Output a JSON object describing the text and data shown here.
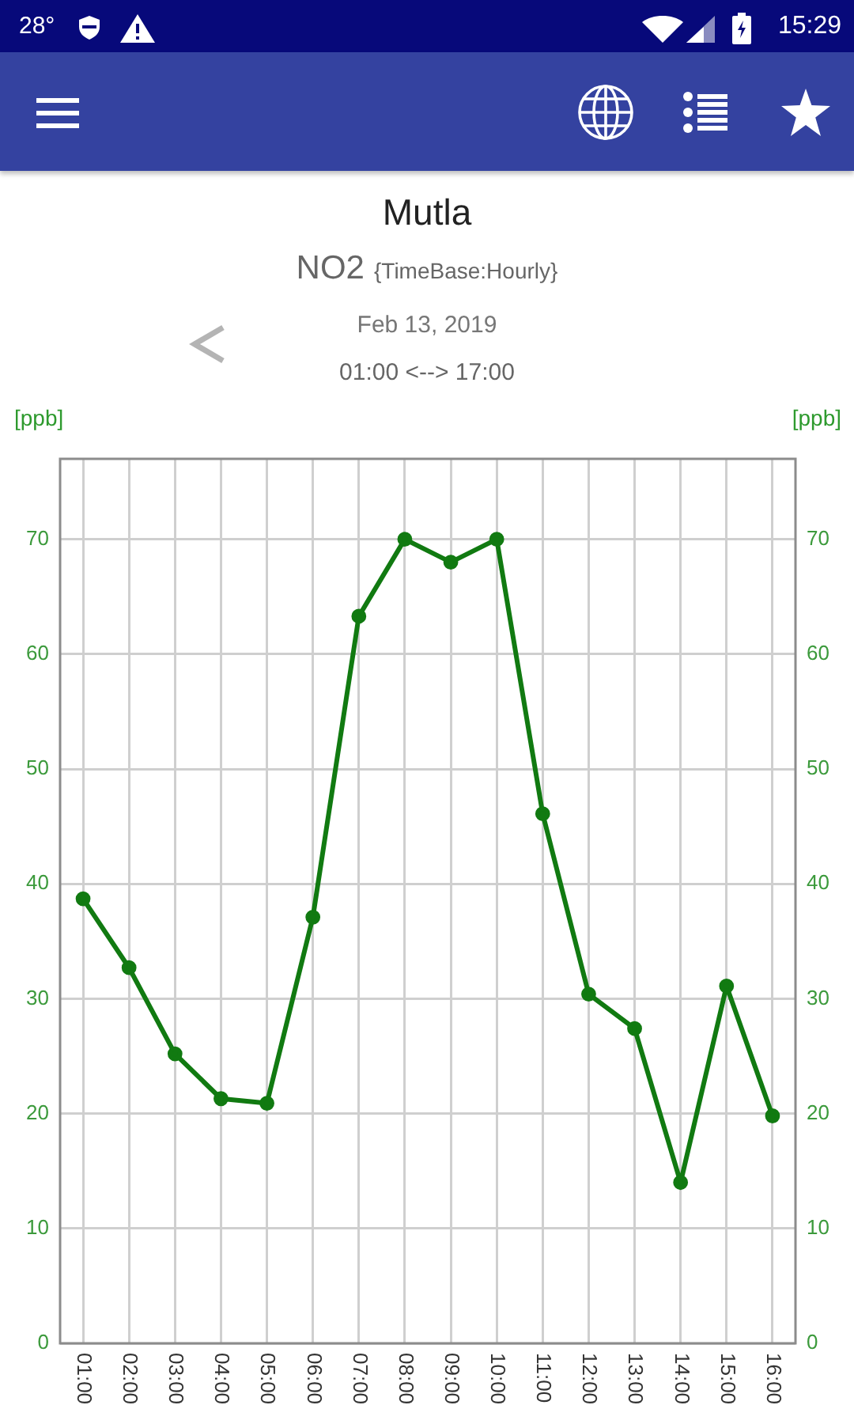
{
  "chart_data": {
    "type": "line",
    "title": "Mutla",
    "subtitle": "NO2",
    "ylabel": "[ppb]",
    "y2label": "[ppb]",
    "annotations": [
      "28°",
      "15:29",
      "{TimeBase:Hourly}",
      "Feb 13, 2019",
      "01:00 <--> 17:00"
    ],
    "categories": [
      "01:00",
      "02:00",
      "03:00",
      "04:00",
      "05:00",
      "06:00",
      "07:00",
      "08:00",
      "09:00",
      "10:00",
      "11:00",
      "12:00",
      "13:00",
      "14:00",
      "15:00",
      "16:00"
    ],
    "series": [
      {
        "color": "#117a11",
        "values": [
          38.7,
          32.7,
          25.2,
          21.3,
          20.9,
          37.1,
          63.3,
          70,
          68,
          70,
          46.1,
          30.4,
          27.4,
          14,
          31.1,
          19.8
        ]
      }
    ],
    "ylim": [
      0,
      77
    ],
    "yticks": [
      0,
      10,
      20,
      30,
      40,
      50,
      60,
      70
    ],
    "y2lim": [
      0,
      77
    ],
    "y2ticks": [
      0,
      10,
      20,
      30,
      40,
      50,
      60,
      70
    ],
    "grid": true,
    "marker": "circle",
    "line_style": "solid"
  }
}
